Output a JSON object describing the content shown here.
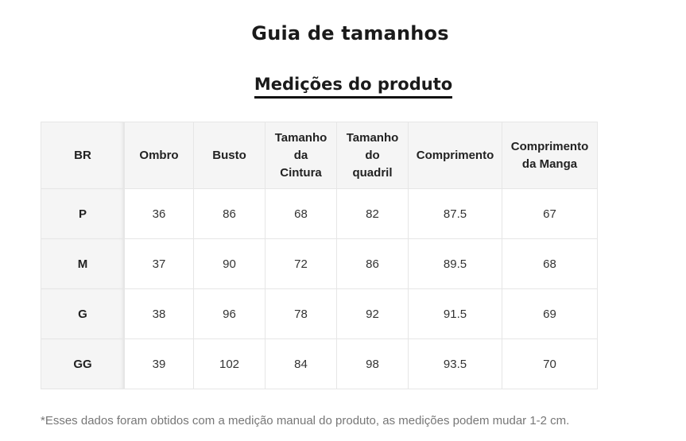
{
  "title": "Guia de tamanhos",
  "subtitle": "Medições do produto",
  "table": {
    "headers": [
      "BR",
      "Ombro",
      "Busto",
      "Tamanho\nda\nCintura",
      "Tamanho\ndo\nquadril",
      "Comprimento",
      "Comprimento\nda Manga"
    ],
    "rows": [
      [
        "P",
        "36",
        "86",
        "68",
        "82",
        "87.5",
        "67"
      ],
      [
        "M",
        "37",
        "90",
        "72",
        "86",
        "89.5",
        "68"
      ],
      [
        "G",
        "38",
        "96",
        "78",
        "92",
        "91.5",
        "69"
      ],
      [
        "GG",
        "39",
        "102",
        "84",
        "98",
        "93.5",
        "70"
      ]
    ]
  },
  "note": "*Esses dados foram obtidos com a medição manual do produto, as medições podem mudar 1-2 cm."
}
